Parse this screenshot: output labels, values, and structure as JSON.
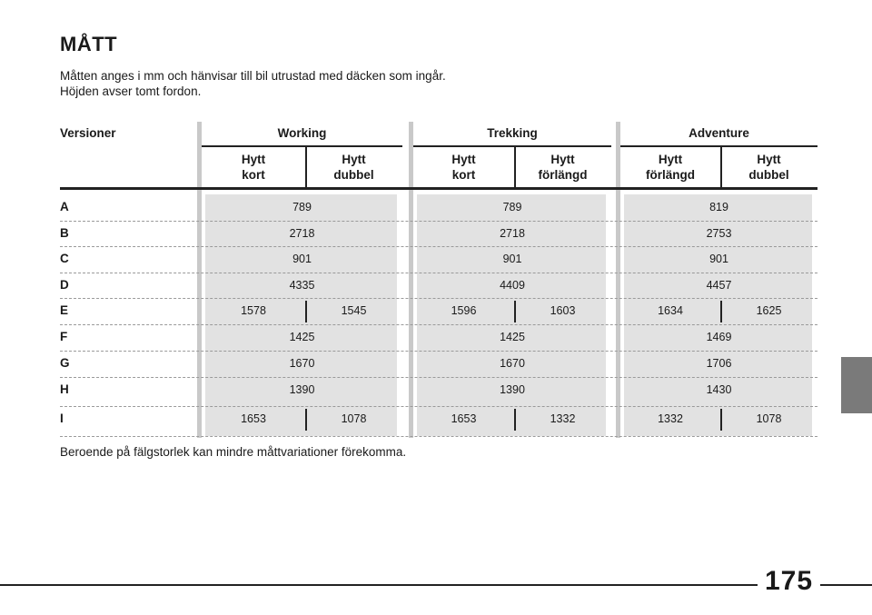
{
  "heading": "MÅTT",
  "intro": [
    "Måtten anges i mm och hänvisar till bil utrustad med däcken som ingår.",
    "Höjden avser tomt fordon."
  ],
  "table": {
    "row_header": "Versioner",
    "groups": [
      {
        "name": "Working",
        "sub": [
          {
            "l1": "Hytt",
            "l2": "kort"
          },
          {
            "l1": "Hytt",
            "l2": "dubbel"
          }
        ]
      },
      {
        "name": "Trekking",
        "sub": [
          {
            "l1": "Hytt",
            "l2": "kort"
          },
          {
            "l1": "Hytt",
            "l2": "förlängd"
          }
        ]
      },
      {
        "name": "Adventure",
        "sub": [
          {
            "l1": "Hytt",
            "l2": "förlängd"
          },
          {
            "l1": "Hytt",
            "l2": "dubbel"
          }
        ]
      }
    ],
    "rows": [
      {
        "label": "A",
        "values": [
          [
            "789"
          ],
          [
            "789"
          ],
          [
            "819"
          ]
        ]
      },
      {
        "label": "B",
        "values": [
          [
            "2718"
          ],
          [
            "2718"
          ],
          [
            "2753"
          ]
        ]
      },
      {
        "label": "C",
        "values": [
          [
            "901"
          ],
          [
            "901"
          ],
          [
            "901"
          ]
        ]
      },
      {
        "label": "D",
        "values": [
          [
            "4335"
          ],
          [
            "4409"
          ],
          [
            "4457"
          ]
        ]
      },
      {
        "label": "E",
        "values": [
          [
            "1578",
            "1545"
          ],
          [
            "1596",
            "1603"
          ],
          [
            "1634",
            "1625"
          ]
        ]
      },
      {
        "label": "F",
        "values": [
          [
            "1425"
          ],
          [
            "1425"
          ],
          [
            "1469"
          ]
        ]
      },
      {
        "label": "G",
        "values": [
          [
            "1670"
          ],
          [
            "1670"
          ],
          [
            "1706"
          ]
        ]
      },
      {
        "label": "H",
        "values": [
          [
            "1390"
          ],
          [
            "1390"
          ],
          [
            "1430"
          ]
        ]
      },
      {
        "label": "I",
        "values": [
          [
            "1653",
            "1078"
          ],
          [
            "1653",
            "1332"
          ],
          [
            "1332",
            "1078"
          ]
        ]
      }
    ]
  },
  "footnote": "Beroende på fälgstorlek kan mindre måttvariationer förekomma.",
  "page_number": "175"
}
